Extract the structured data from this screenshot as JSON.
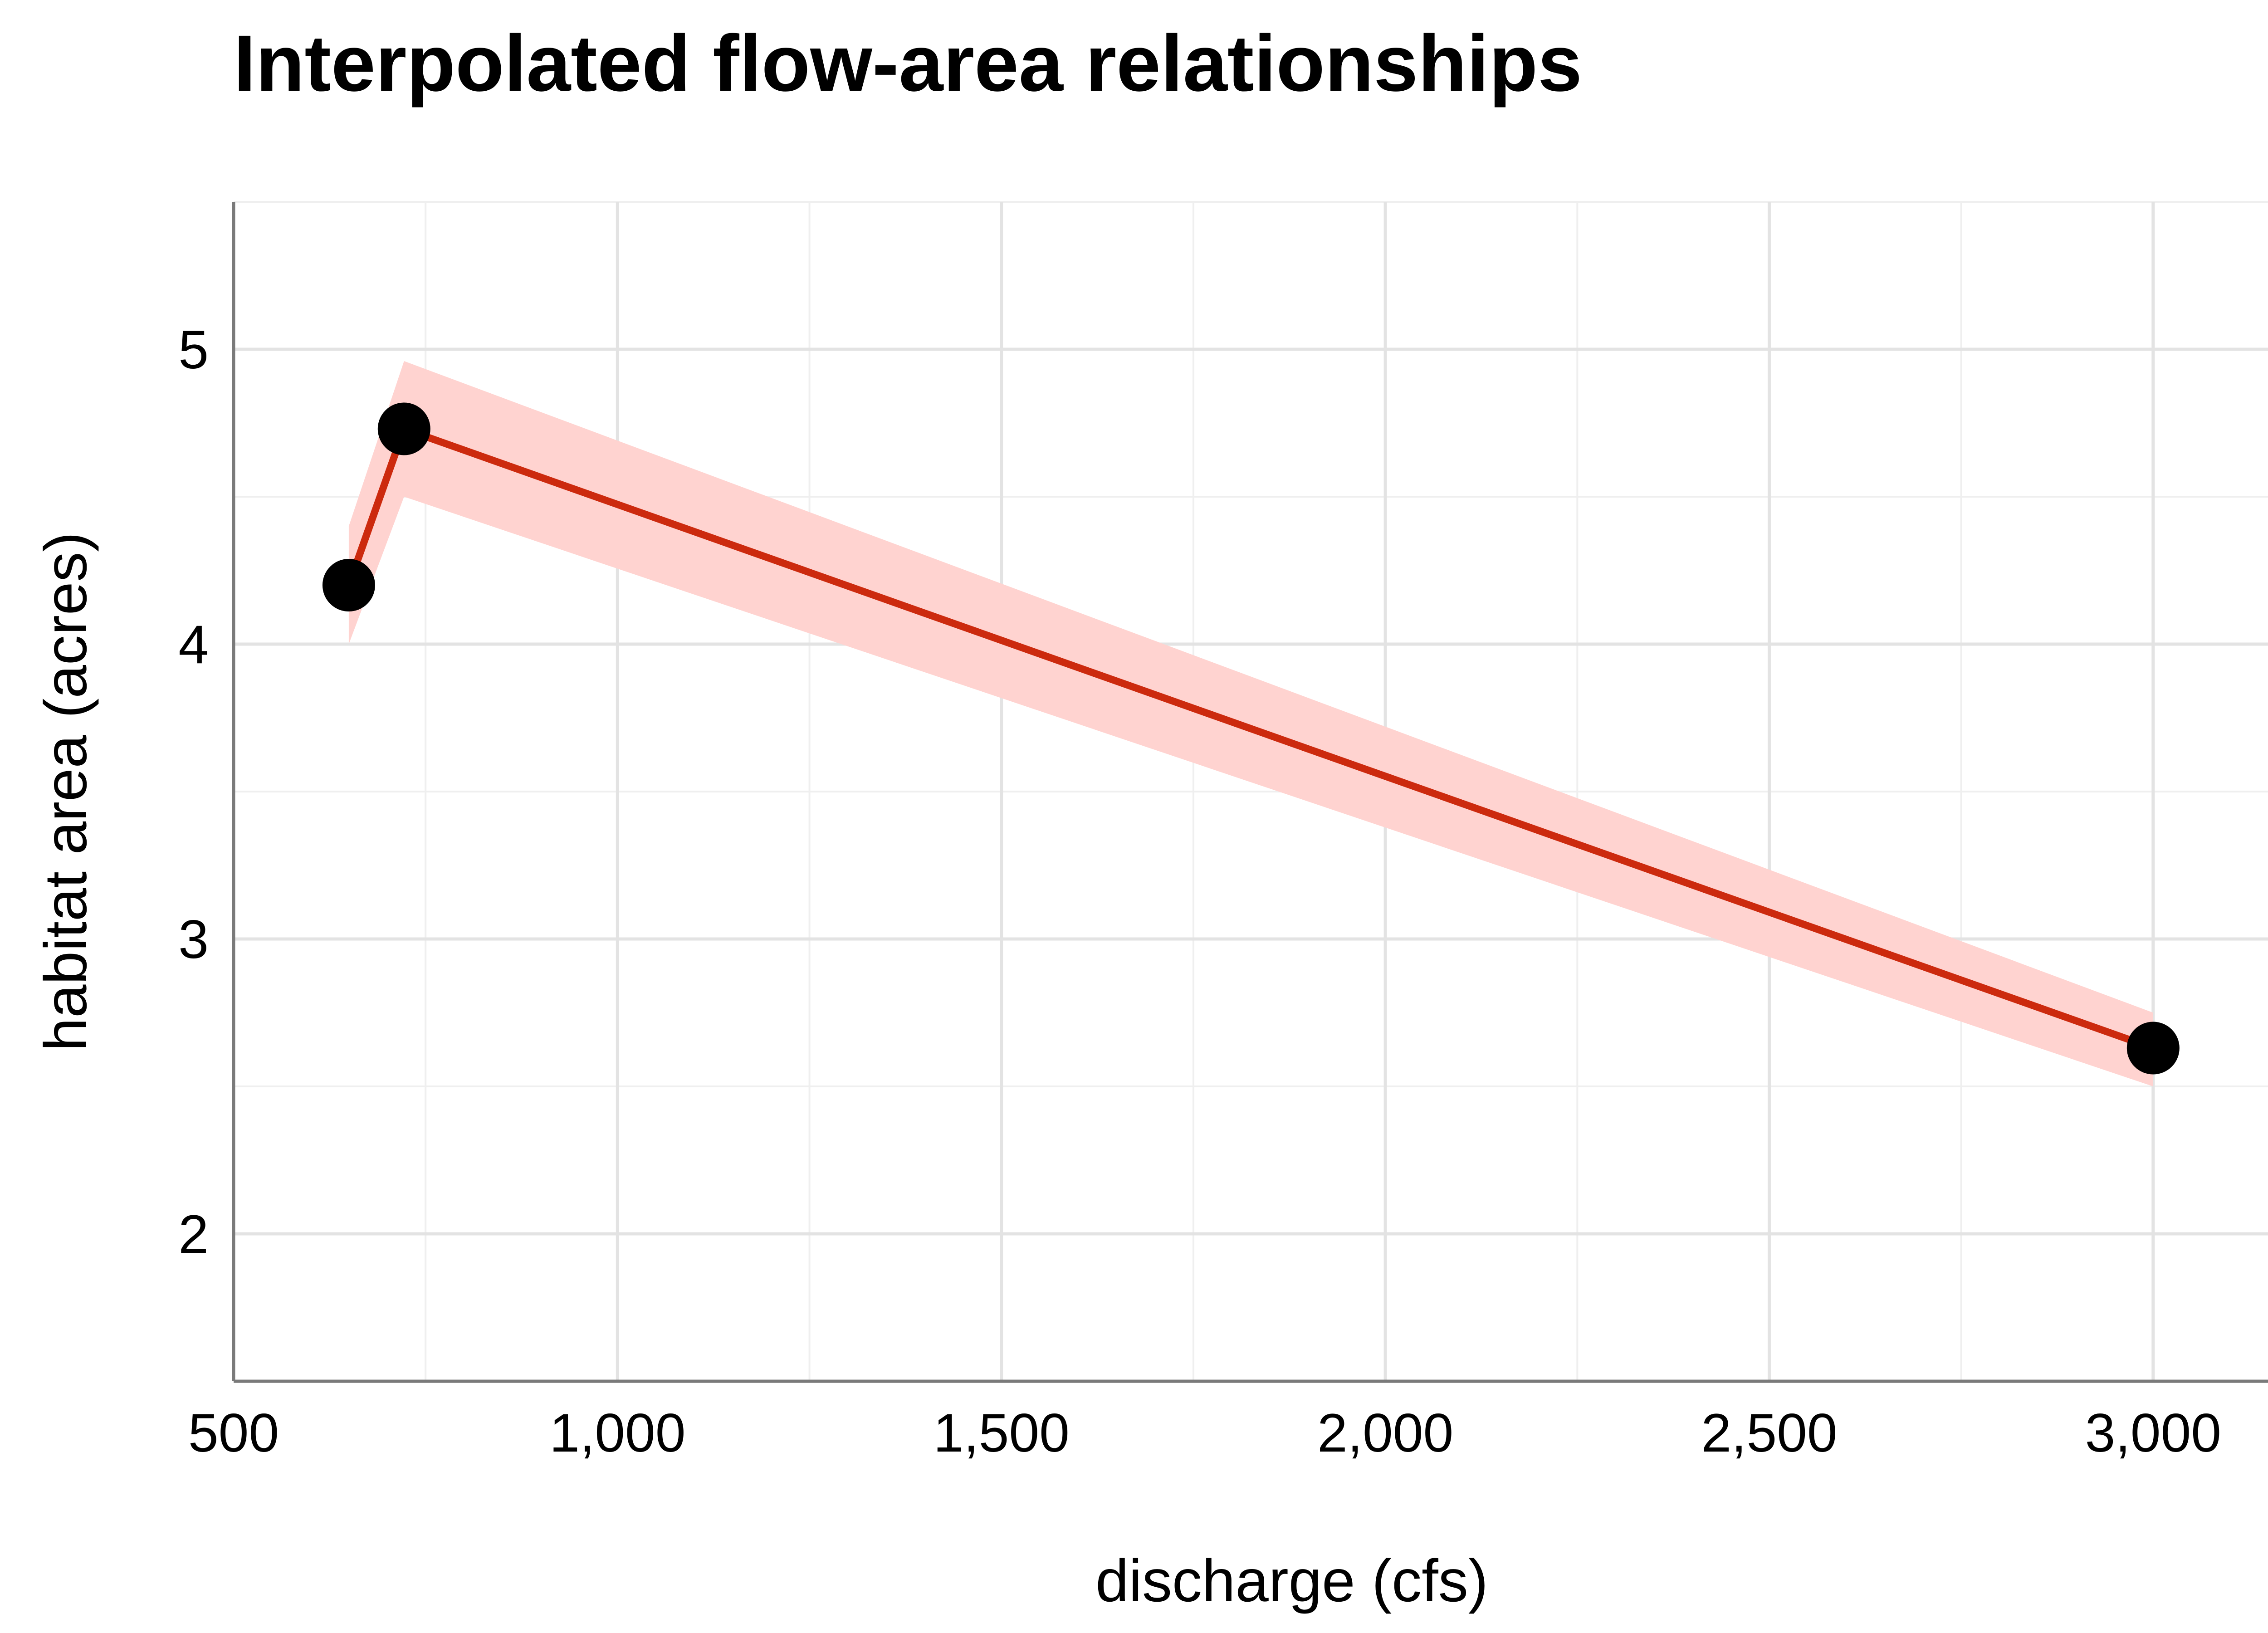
{
  "chart_data": {
    "type": "line",
    "title": "Interpolated flow-area relationships",
    "xlabel": "discharge (cfs)",
    "ylabel": "habitat area (acres)",
    "xlim": [
      500,
      3250
    ],
    "ylim": [
      1.5,
      5.5
    ],
    "x_ticks": [
      500,
      1000,
      1500,
      2000,
      2500,
      3000
    ],
    "x_tick_labels": [
      "500",
      "1,000",
      "1,500",
      "2,000",
      "2,500",
      "3,000"
    ],
    "x_minor_ticks": [
      750,
      1250,
      1750,
      2250,
      2750,
      3250
    ],
    "y_ticks": [
      2,
      3,
      4,
      5
    ],
    "y_tick_labels": [
      "2",
      "3",
      "4",
      "5"
    ],
    "y_minor_ticks": [
      2.5,
      3.5,
      4.5
    ],
    "grid": true,
    "series": [
      {
        "x": [
          650,
          722,
          3000
        ],
        "y": [
          4.2,
          4.73,
          2.63
        ],
        "lower": [
          4.0,
          4.5,
          2.5
        ],
        "upper": [
          4.4,
          4.96,
          2.75
        ],
        "points_shown": [
          true,
          true,
          true
        ]
      }
    ],
    "colors": {
      "line": "#cc2a0e",
      "ribbon": "#ffd3d0",
      "points": "#000000"
    }
  }
}
